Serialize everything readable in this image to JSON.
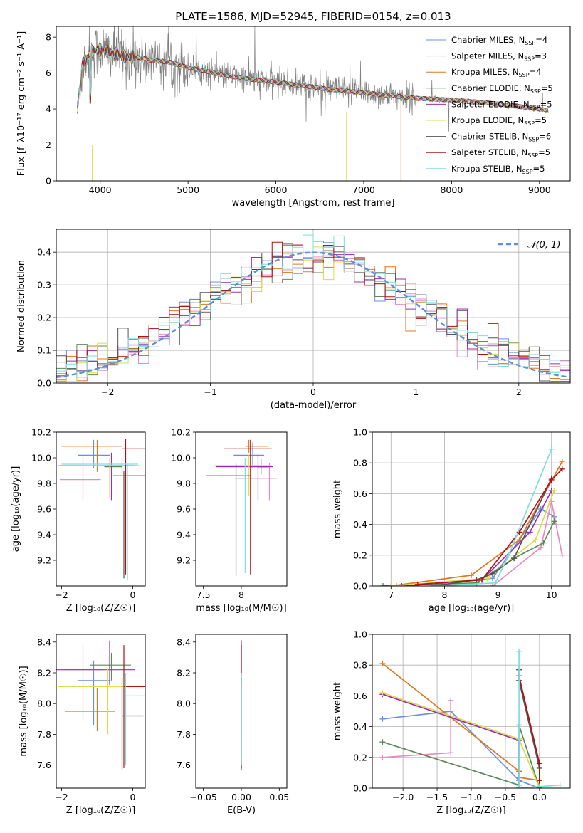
{
  "colors": {
    "Chabrier MILES": "#6a8fd8",
    "Salpeter MILES": "#e98ac0",
    "Kroupa MILES": "#e0761f",
    "Chabrier ELODIE": "#5a8a5a",
    "Salpeter ELODIE": "#9b2fae",
    "Kroupa ELODIE": "#dcdc4a",
    "Chabrier STELIB": "#555555",
    "Salpeter STELIB": "#b01010",
    "Kroupa STELIB": "#7fdde0",
    "data": "#808080",
    "normal": "#5b8fd8"
  },
  "chart_data": [
    {
      "type": "line",
      "title": "PLATE=1586, MJD=52945, FIBERID=0154, z=0.013",
      "xlabel": "wavelength [Angstrom, rest frame]",
      "ylabel": "Flux [f_λ10⁻¹⁷ erg cm⁻² s⁻¹ A⁻¹]",
      "xlim": [
        3500,
        9350
      ],
      "ylim": [
        0,
        8.6
      ],
      "xticks": [
        4000,
        5000,
        6000,
        7000,
        8000,
        9000
      ],
      "yticks": [
        0,
        2,
        4,
        6,
        8
      ],
      "legend_position": "top-right",
      "legend": [
        {
          "label": "Chabrier MILES",
          "nssp": "4"
        },
        {
          "label": "Salpeter MILES",
          "nssp": "3"
        },
        {
          "label": "Kroupa MILES",
          "nssp": "4"
        },
        {
          "label": "Chabrier ELODIE",
          "nssp": "5"
        },
        {
          "label": "Salpeter ELODIE",
          "nssp": "5"
        },
        {
          "label": "Kroupa ELODIE",
          "nssp": "5"
        },
        {
          "label": "Chabrier STELIB",
          "nssp": "6"
        },
        {
          "label": "Salpeter STELIB",
          "nssp": "5"
        },
        {
          "label": "Kroupa STELIB",
          "nssp": "5"
        }
      ],
      "continuum": {
        "x": [
          3740,
          3800,
          3900,
          4000,
          4100,
          4200,
          4300,
          4400,
          4500,
          4600,
          4800,
          5000,
          5200,
          5500,
          5800,
          6000,
          6300,
          6600,
          7000,
          7400,
          7600,
          8000,
          8500,
          9000,
          9100
        ],
        "y": [
          4.0,
          6.5,
          7.2,
          7.3,
          7.2,
          7.0,
          6.9,
          6.9,
          6.8,
          6.7,
          6.6,
          6.3,
          6.1,
          5.8,
          5.6,
          5.5,
          5.3,
          5.1,
          4.9,
          4.7,
          4.6,
          4.5,
          4.3,
          4.0,
          3.9
        ]
      }
    },
    {
      "type": "bar",
      "xlabel": "(data-model)/error",
      "ylabel": "Normed distribution",
      "xlim": [
        -2.5,
        2.5
      ],
      "ylim": [
        0,
        0.47
      ],
      "xticks": [
        -2,
        -1,
        0,
        1,
        2
      ],
      "yticks": [
        0.0,
        0.1,
        0.2,
        0.3,
        0.4
      ],
      "bin_width": 0.1,
      "legend": "𝒩(0, 1)",
      "legend_position": "top-right",
      "reference_curve": "normal(0,1)"
    },
    {
      "type": "scatter",
      "xlabel": "Z [log₁₀(Z/Z☉)]",
      "ylabel": "age  [log₁₀(age/yr)]",
      "xlim": [
        -2.15,
        0.35
      ],
      "ylim": [
        9.0,
        10.2
      ],
      "xticks": [
        -2,
        0
      ],
      "yticks": [
        9.2,
        9.4,
        9.6,
        9.8,
        10.0,
        10.2
      ],
      "series": [
        {
          "name": "Chabrier MILES",
          "x": -1.1,
          "xerr": [
            0.45,
            0.45
          ],
          "y": 10.02,
          "yerr": [
            0.1,
            0.12
          ]
        },
        {
          "name": "Salpeter MILES",
          "x": -1.4,
          "xerr": [
            0.65,
            0.5
          ],
          "y": 9.83,
          "yerr": [
            0.17,
            0.18
          ]
        },
        {
          "name": "Kroupa MILES",
          "x": -1.0,
          "xerr": [
            1.0,
            0.7
          ],
          "y": 10.09,
          "yerr": [
            0.2,
            0.05
          ]
        },
        {
          "name": "Chabrier ELODIE",
          "x": -0.3,
          "xerr": [
            0.5,
            0.0
          ],
          "y": 9.93,
          "yerr": [
            0.05,
            0.07
          ]
        },
        {
          "name": "Salpeter ELODIE",
          "x": -0.6,
          "xerr": [
            1.5,
            0.65
          ],
          "y": 9.94,
          "yerr": [
            0.27,
            0.1
          ]
        },
        {
          "name": "Kroupa ELODIE",
          "x": -0.65,
          "xerr": [
            1.45,
            0.85
          ],
          "y": 9.94,
          "yerr": [
            0.25,
            0.06
          ]
        },
        {
          "name": "Chabrier STELIB",
          "x": -0.25,
          "xerr": [
            0.3,
            0.8
          ],
          "y": 9.86,
          "yerr": [
            0.8,
            0.04
          ]
        },
        {
          "name": "Salpeter STELIB",
          "x": -0.2,
          "xerr": [
            0.1,
            0.7
          ],
          "y": 10.07,
          "yerr": [
            0.98,
            0.08
          ]
        },
        {
          "name": "Kroupa STELIB",
          "x": -0.15,
          "xerr": [
            1.85,
            0.3
          ],
          "y": 9.95,
          "yerr": [
            0.9,
            0.0
          ]
        }
      ]
    },
    {
      "type": "scatter",
      "xlabel": "mass [log₁₀(M/M☉)]",
      "ylabel": "",
      "xlim": [
        7.4,
        8.6
      ],
      "ylim": [
        9.0,
        10.2
      ],
      "xticks": [
        7.5,
        8.0
      ],
      "yticks": [
        9.2,
        9.4,
        9.6,
        9.8,
        10.0,
        10.2
      ],
      "series": [
        {
          "name": "Chabrier MILES",
          "x": 8.15,
          "xerr": [
            0.25,
            0.15
          ],
          "y": 10.02,
          "yerr": [
            0.1,
            0.1
          ]
        },
        {
          "name": "Salpeter MILES",
          "x": 8.37,
          "xerr": [
            0.45,
            0.1
          ],
          "y": 9.84,
          "yerr": [
            0.17,
            0.12
          ]
        },
        {
          "name": "Kroupa MILES",
          "x": 8.1,
          "xerr": [
            0.05,
            0.25
          ],
          "y": 10.09,
          "yerr": [
            0.05,
            0.05
          ]
        },
        {
          "name": "Chabrier ELODIE",
          "x": 8.26,
          "xerr": [
            0.05,
            0.1
          ],
          "y": 9.92,
          "yerr": [
            0.05,
            0.07
          ]
        },
        {
          "name": "Salpeter ELODIE",
          "x": 8.22,
          "xerr": [
            0.55,
            0.2
          ],
          "y": 9.93,
          "yerr": [
            0.26,
            0.1
          ]
        },
        {
          "name": "Kroupa ELODIE",
          "x": 8.1,
          "xerr": [
            0.45,
            0.3
          ],
          "y": 9.94,
          "yerr": [
            0.24,
            0.08
          ]
        },
        {
          "name": "Chabrier STELIB",
          "x": 7.93,
          "xerr": [
            0.4,
            0.2
          ],
          "y": 9.86,
          "yerr": [
            0.78,
            0.1
          ]
        },
        {
          "name": "Salpeter STELIB",
          "x": 8.12,
          "xerr": [
            0.35,
            0.28
          ],
          "y": 10.07,
          "yerr": [
            0.98,
            0.07
          ]
        },
        {
          "name": "Kroupa STELIB",
          "x": 8.05,
          "xerr": [
            0.0,
            0.0
          ],
          "y": 9.95,
          "yerr": [
            0.85,
            0.05
          ]
        }
      ]
    },
    {
      "type": "line",
      "xlabel": "age  [log₁₀(age/yr)]",
      "ylabel": "mass weight",
      "xlim": [
        6.65,
        10.35
      ],
      "ylim": [
        0,
        1.0
      ],
      "xticks": [
        7,
        8,
        9,
        10
      ],
      "yticks": [
        0.0,
        0.2,
        0.4,
        0.6,
        0.8,
        1.0
      ],
      "series": [
        {
          "name": "Chabrier MILES",
          "x": [
            7.1,
            8.9,
            9.8,
            10.05
          ],
          "y": [
            0.0,
            0.05,
            0.5,
            0.45
          ]
        },
        {
          "name": "Salpeter MILES",
          "x": [
            8.9,
            9.8,
            10.0,
            10.2
          ],
          "y": [
            0.0,
            0.25,
            0.55,
            0.2
          ]
        },
        {
          "name": "Kroupa MILES",
          "x": [
            7.0,
            8.5,
            9.4,
            10.2
          ],
          "y": [
            0.0,
            0.07,
            0.3,
            0.81
          ]
        },
        {
          "name": "Chabrier ELODIE",
          "x": [
            6.85,
            8.6,
            9.3,
            9.85,
            10.05
          ],
          "y": [
            0.0,
            0.02,
            0.18,
            0.28,
            0.42
          ]
        },
        {
          "name": "Salpeter ELODIE",
          "x": [
            7.2,
            8.7,
            9.6,
            10.0
          ],
          "y": [
            0.0,
            0.04,
            0.35,
            0.62
          ]
        },
        {
          "name": "Kroupa ELODIE",
          "x": [
            7.0,
            8.8,
            9.7,
            10.05
          ],
          "y": [
            0.0,
            0.05,
            0.3,
            0.62
          ]
        },
        {
          "name": "Chabrier STELIB",
          "x": [
            7.8,
            8.6,
            8.9,
            9.3,
            10.0
          ],
          "y": [
            0.0,
            0.04,
            0.08,
            0.18,
            0.7
          ]
        },
        {
          "name": "Salpeter STELIB",
          "x": [
            7.5,
            8.7,
            9.4,
            10.0,
            10.2
          ],
          "y": [
            0.01,
            0.04,
            0.35,
            0.69,
            0.76
          ]
        },
        {
          "name": "Kroupa STELIB",
          "x": [
            7.8,
            8.95,
            9.2,
            10.0
          ],
          "y": [
            0.0,
            0.02,
            0.2,
            0.89
          ]
        }
      ]
    },
    {
      "type": "scatter",
      "xlabel": "Z [log₁₀(Z/Z☉)]",
      "ylabel": "mass [log₁₀(M/M☉)]",
      "xlim": [
        -2.15,
        0.35
      ],
      "ylim": [
        7.45,
        8.45
      ],
      "xticks": [
        -2,
        0
      ],
      "yticks": [
        7.6,
        7.8,
        8.0,
        8.2,
        8.4
      ],
      "series": [
        {
          "name": "Chabrier MILES",
          "x": -1.1,
          "xerr": [
            0.45,
            0.45
          ],
          "y": 8.15,
          "yerr": [
            0.29,
            0.13
          ]
        },
        {
          "name": "Salpeter MILES",
          "x": -1.4,
          "xerr": [
            0.6,
            0.55
          ],
          "y": 8.22,
          "yerr": [
            0.33,
            0.16
          ]
        },
        {
          "name": "Kroupa MILES",
          "x": -1.0,
          "xerr": [
            0.9,
            0.5
          ],
          "y": 7.95,
          "yerr": [
            0.13,
            0.15
          ]
        },
        {
          "name": "Chabrier ELODIE",
          "x": -0.6,
          "xerr": [
            0.6,
            0.55
          ],
          "y": 8.25,
          "yerr": [
            0.1,
            0.08
          ]
        },
        {
          "name": "Salpeter ELODIE",
          "x": -0.65,
          "xerr": [
            1.5,
            0.7
          ],
          "y": 8.22,
          "yerr": [
            0.1,
            0.19
          ]
        },
        {
          "name": "Kroupa ELODIE",
          "x": -0.7,
          "xerr": [
            1.4,
            0.75
          ],
          "y": 8.11,
          "yerr": [
            0.31,
            0.12
          ]
        },
        {
          "name": "Chabrier STELIB",
          "x": -0.3,
          "xerr": [
            0.0,
            0.6
          ],
          "y": 7.92,
          "yerr": [
            0.35,
            0.25
          ]
        },
        {
          "name": "Salpeter STELIB",
          "x": -0.25,
          "xerr": [
            0.0,
            0.7
          ],
          "y": 8.11,
          "yerr": [
            0.53,
            0.27
          ]
        },
        {
          "name": "Kroupa STELIB",
          "x": -0.2,
          "xerr": [
            0.0,
            0.55
          ],
          "y": 8.05,
          "yerr": [
            0.45,
            0.15
          ]
        }
      ]
    },
    {
      "type": "scatter",
      "xlabel": "E(B-V)",
      "ylabel": "",
      "xlim": [
        -0.06,
        0.06
      ],
      "ylim": [
        7.45,
        8.45
      ],
      "xticks": [
        -0.05,
        0.0,
        0.05
      ],
      "yticks": [
        7.6,
        7.8,
        8.0,
        8.2,
        8.4
      ],
      "series": [
        {
          "name": "Salpeter ELODIE",
          "x": 0.0,
          "y": 8.22,
          "yerr": [
            0.1,
            0.19
          ]
        },
        {
          "name": "Kroupa ELODIE",
          "x": 0.0,
          "y": 8.11,
          "yerr": [
            0.31,
            0.12
          ]
        },
        {
          "name": "Chabrier STELIB",
          "x": 0.0,
          "y": 7.92,
          "yerr": [
            0.35,
            0.25
          ]
        },
        {
          "name": "Salpeter STELIB",
          "x": 0.0,
          "y": 8.11,
          "yerr": [
            0.53,
            0.27
          ]
        },
        {
          "name": "Kroupa STELIB",
          "x": 0.0,
          "y": 8.05,
          "yerr": [
            0.45,
            0.15
          ]
        }
      ]
    },
    {
      "type": "line",
      "xlabel": "Z [log₁₀(Z/Z☉)]",
      "ylabel": "mass weight",
      "xlim": [
        -2.45,
        0.45
      ],
      "ylim": [
        0,
        1.0
      ],
      "xticks": [
        -2.0,
        -1.5,
        -1.0,
        -0.5,
        0.0
      ],
      "yticks": [
        0.0,
        0.2,
        0.4,
        0.6,
        0.8,
        1.0
      ],
      "series": [
        {
          "name": "Chabrier MILES",
          "x": [
            -2.3,
            -1.3,
            -0.3,
            0.0
          ],
          "y": [
            0.45,
            0.5,
            0.05,
            0.0
          ]
        },
        {
          "name": "Salpeter MILES",
          "x": [
            -2.3,
            -1.3,
            -1.3
          ],
          "y": [
            0.2,
            0.23,
            0.57
          ]
        },
        {
          "name": "Kroupa MILES",
          "x": [
            -2.3,
            -0.3,
            -0.3,
            0.0
          ],
          "y": [
            0.81,
            0.11,
            0.07,
            0.05
          ]
        },
        {
          "name": "Chabrier ELODIE",
          "x": [
            -2.3,
            -0.3,
            -0.3,
            0.0
          ],
          "y": [
            0.3,
            0.02,
            0.41,
            0.0
          ]
        },
        {
          "name": "Salpeter ELODIE",
          "x": [
            -2.3,
            -0.3,
            -0.3
          ],
          "y": [
            0.61,
            0.31,
            0.0
          ]
        },
        {
          "name": "Kroupa ELODIE",
          "x": [
            -2.3,
            -0.3,
            0.0
          ],
          "y": [
            0.62,
            0.32,
            0.0
          ]
        },
        {
          "name": "Chabrier STELIB",
          "x": [
            -0.3,
            -0.3,
            0.0,
            0.0
          ],
          "y": [
            0.77,
            0.7,
            0.13,
            0.0
          ]
        },
        {
          "name": "Salpeter STELIB",
          "x": [
            -0.3,
            0.0,
            0.0
          ],
          "y": [
            0.73,
            0.16,
            0.05
          ]
        },
        {
          "name": "Kroupa STELIB",
          "x": [
            -0.3,
            -0.3,
            0.0,
            0.3
          ],
          "y": [
            0.89,
            0.0,
            0.01,
            0.02
          ]
        }
      ]
    }
  ]
}
